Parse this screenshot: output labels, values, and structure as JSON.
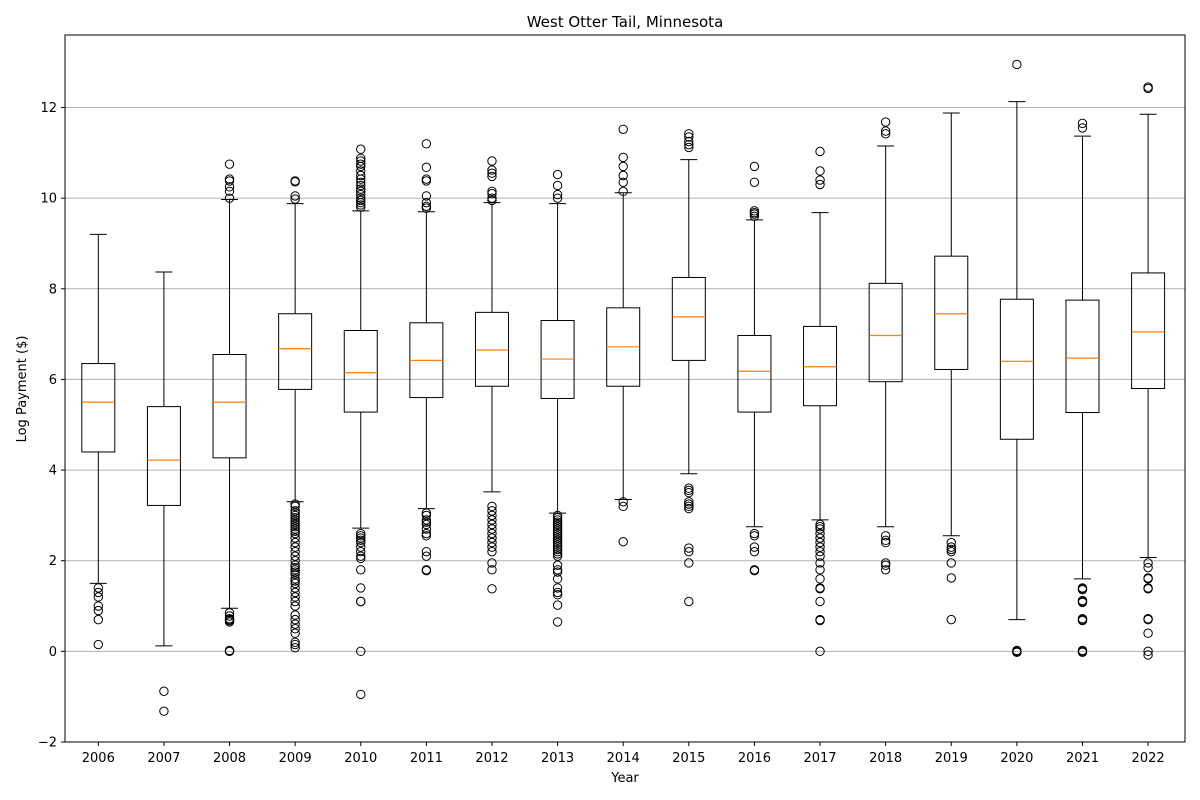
{
  "chart_data": {
    "type": "boxplot",
    "title": "West Otter Tail, Minnesota",
    "xlabel": "Year",
    "ylabel": "Log Payment ($)",
    "ylim": [
      -2,
      13.6
    ],
    "yticks": [
      -2,
      0,
      2,
      4,
      6,
      8,
      10,
      12
    ],
    "ytick_labels": [
      "−2",
      "0",
      "2",
      "4",
      "6",
      "8",
      "10",
      "12"
    ],
    "grid": "y",
    "colors": {
      "box": "#000000",
      "median": "#ff7f0e",
      "grid": "#b0b0b0",
      "flier": "#000000"
    },
    "categories": [
      "2006",
      "2007",
      "2008",
      "2009",
      "2010",
      "2011",
      "2012",
      "2013",
      "2014",
      "2015",
      "2016",
      "2017",
      "2018",
      "2019",
      "2020",
      "2021",
      "2022"
    ],
    "boxes": [
      {
        "year": "2006",
        "whislo": 1.5,
        "q1": 4.4,
        "med": 5.5,
        "q3": 6.35,
        "whishi": 9.2,
        "fliers": [
          1.4,
          1.3,
          1.2,
          1.0,
          0.9,
          0.7,
          0.15
        ]
      },
      {
        "year": "2007",
        "whislo": 0.12,
        "q1": 3.22,
        "med": 4.22,
        "q3": 5.4,
        "whishi": 8.37,
        "fliers": [
          -0.88,
          -1.32
        ]
      },
      {
        "year": "2008",
        "whislo": 0.95,
        "q1": 4.27,
        "med": 5.5,
        "q3": 6.55,
        "whishi": 9.97,
        "fliers": [
          10.75,
          10.42,
          10.38,
          10.25,
          10.15,
          10.0,
          0.85,
          0.78,
          0.72,
          0.7,
          0.68,
          0.65,
          0.02,
          0.0,
          0.0
        ]
      },
      {
        "year": "2009",
        "whislo": 3.3,
        "q1": 5.78,
        "med": 6.68,
        "q3": 7.45,
        "whishi": 9.88,
        "fliers": [
          10.38,
          10.36,
          10.05,
          9.98,
          3.25,
          3.2,
          3.1,
          3.05,
          3.0,
          2.95,
          2.9,
          2.85,
          2.8,
          2.75,
          2.7,
          2.65,
          2.6,
          2.5,
          2.4,
          2.3,
          2.2,
          2.1,
          2.0,
          1.9,
          1.85,
          1.8,
          1.75,
          1.7,
          1.6,
          1.55,
          1.5,
          1.4,
          1.3,
          1.2,
          1.1,
          1.0,
          0.8,
          0.7,
          0.6,
          0.5,
          0.4,
          0.2,
          0.15,
          0.08
        ]
      },
      {
        "year": "2010",
        "whislo": 2.72,
        "q1": 5.28,
        "med": 6.15,
        "q3": 7.08,
        "whishi": 9.72,
        "fliers": [
          11.08,
          10.88,
          10.82,
          10.75,
          10.7,
          10.6,
          10.5,
          10.42,
          10.35,
          10.28,
          10.2,
          10.15,
          10.08,
          10.0,
          9.95,
          9.9,
          9.85,
          9.8,
          2.6,
          2.55,
          2.5,
          2.45,
          2.4,
          2.3,
          2.2,
          2.1,
          2.05,
          1.8,
          1.4,
          1.1,
          1.1,
          0.0,
          -0.95
        ]
      },
      {
        "year": "2011",
        "whislo": 3.15,
        "q1": 5.6,
        "med": 6.42,
        "q3": 7.25,
        "whishi": 9.7,
        "fliers": [
          11.2,
          10.68,
          10.42,
          10.38,
          10.05,
          9.9,
          9.82,
          9.78,
          3.05,
          3.0,
          2.9,
          2.85,
          2.8,
          2.7,
          2.6,
          2.55,
          2.2,
          2.1,
          1.8,
          1.78
        ]
      },
      {
        "year": "2012",
        "whislo": 3.52,
        "q1": 5.85,
        "med": 6.65,
        "q3": 7.48,
        "whishi": 9.9,
        "fliers": [
          10.82,
          10.62,
          10.55,
          10.48,
          10.15,
          10.1,
          10.0,
          9.95,
          3.2,
          3.1,
          3.0,
          2.9,
          2.8,
          2.7,
          2.6,
          2.5,
          2.4,
          2.3,
          2.2,
          1.95,
          1.8,
          1.38
        ]
      },
      {
        "year": "2013",
        "whislo": 3.05,
        "q1": 5.58,
        "med": 6.45,
        "q3": 7.3,
        "whishi": 9.88,
        "fliers": [
          10.52,
          10.28,
          10.08,
          10.0,
          3.0,
          2.95,
          2.9,
          2.85,
          2.8,
          2.75,
          2.7,
          2.65,
          2.6,
          2.55,
          2.5,
          2.45,
          2.4,
          2.35,
          2.3,
          2.25,
          2.2,
          2.15,
          2.1,
          1.9,
          1.8,
          1.75,
          1.6,
          1.4,
          1.3,
          1.25,
          1.02,
          0.65
        ]
      },
      {
        "year": "2014",
        "whislo": 3.35,
        "q1": 5.85,
        "med": 6.72,
        "q3": 7.58,
        "whishi": 10.12,
        "fliers": [
          11.52,
          10.9,
          10.7,
          10.5,
          10.35,
          10.15,
          3.3,
          3.2,
          2.42
        ]
      },
      {
        "year": "2015",
        "whislo": 3.92,
        "q1": 6.42,
        "med": 7.38,
        "q3": 8.25,
        "whishi": 10.85,
        "fliers": [
          11.42,
          11.35,
          11.25,
          11.18,
          11.12,
          3.6,
          3.55,
          3.5,
          3.3,
          3.25,
          3.2,
          3.15,
          2.28,
          2.2,
          1.95,
          1.1
        ]
      },
      {
        "year": "2016",
        "whislo": 2.75,
        "q1": 5.28,
        "med": 6.18,
        "q3": 6.97,
        "whishi": 9.52,
        "fliers": [
          10.7,
          10.35,
          9.72,
          9.68,
          9.65,
          9.6,
          2.6,
          2.55,
          2.3,
          2.2,
          1.8,
          1.78
        ]
      },
      {
        "year": "2017",
        "whislo": 2.9,
        "q1": 5.42,
        "med": 6.28,
        "q3": 7.17,
        "whishi": 9.68,
        "fliers": [
          11.03,
          10.6,
          10.4,
          10.3,
          2.8,
          2.75,
          2.7,
          2.6,
          2.5,
          2.4,
          2.3,
          2.2,
          2.1,
          1.95,
          1.8,
          1.6,
          1.4,
          1.38,
          1.1,
          0.7,
          0.68,
          0.0
        ]
      },
      {
        "year": "2018",
        "whislo": 2.75,
        "q1": 5.95,
        "med": 6.97,
        "q3": 8.12,
        "whishi": 11.15,
        "fliers": [
          11.68,
          11.48,
          11.42,
          2.55,
          2.45,
          2.4,
          1.95,
          1.9,
          1.8
        ]
      },
      {
        "year": "2019",
        "whislo": 2.55,
        "q1": 6.22,
        "med": 7.45,
        "q3": 8.72,
        "whishi": 11.88,
        "fliers": [
          2.4,
          2.3,
          2.25,
          2.2,
          1.95,
          1.62,
          0.7
        ]
      },
      {
        "year": "2020",
        "whislo": 0.7,
        "q1": 4.68,
        "med": 6.4,
        "q3": 7.77,
        "whishi": 12.13,
        "fliers": [
          12.95,
          0.02,
          0.0,
          0.0,
          -0.02
        ]
      },
      {
        "year": "2021",
        "whislo": 1.6,
        "q1": 5.27,
        "med": 6.47,
        "q3": 7.75,
        "whishi": 11.37,
        "fliers": [
          11.65,
          11.55,
          1.4,
          1.38,
          1.36,
          1.12,
          1.1,
          1.08,
          0.72,
          0.7,
          0.68,
          0.02,
          0.0,
          -0.02
        ]
      },
      {
        "year": "2022",
        "whislo": 2.07,
        "q1": 5.8,
        "med": 7.05,
        "q3": 8.35,
        "whishi": 11.85,
        "fliers": [
          12.45,
          12.42,
          1.95,
          1.85,
          1.62,
          1.6,
          1.4,
          1.38,
          0.72,
          0.7,
          0.4,
          0.0,
          -0.08
        ]
      }
    ]
  }
}
